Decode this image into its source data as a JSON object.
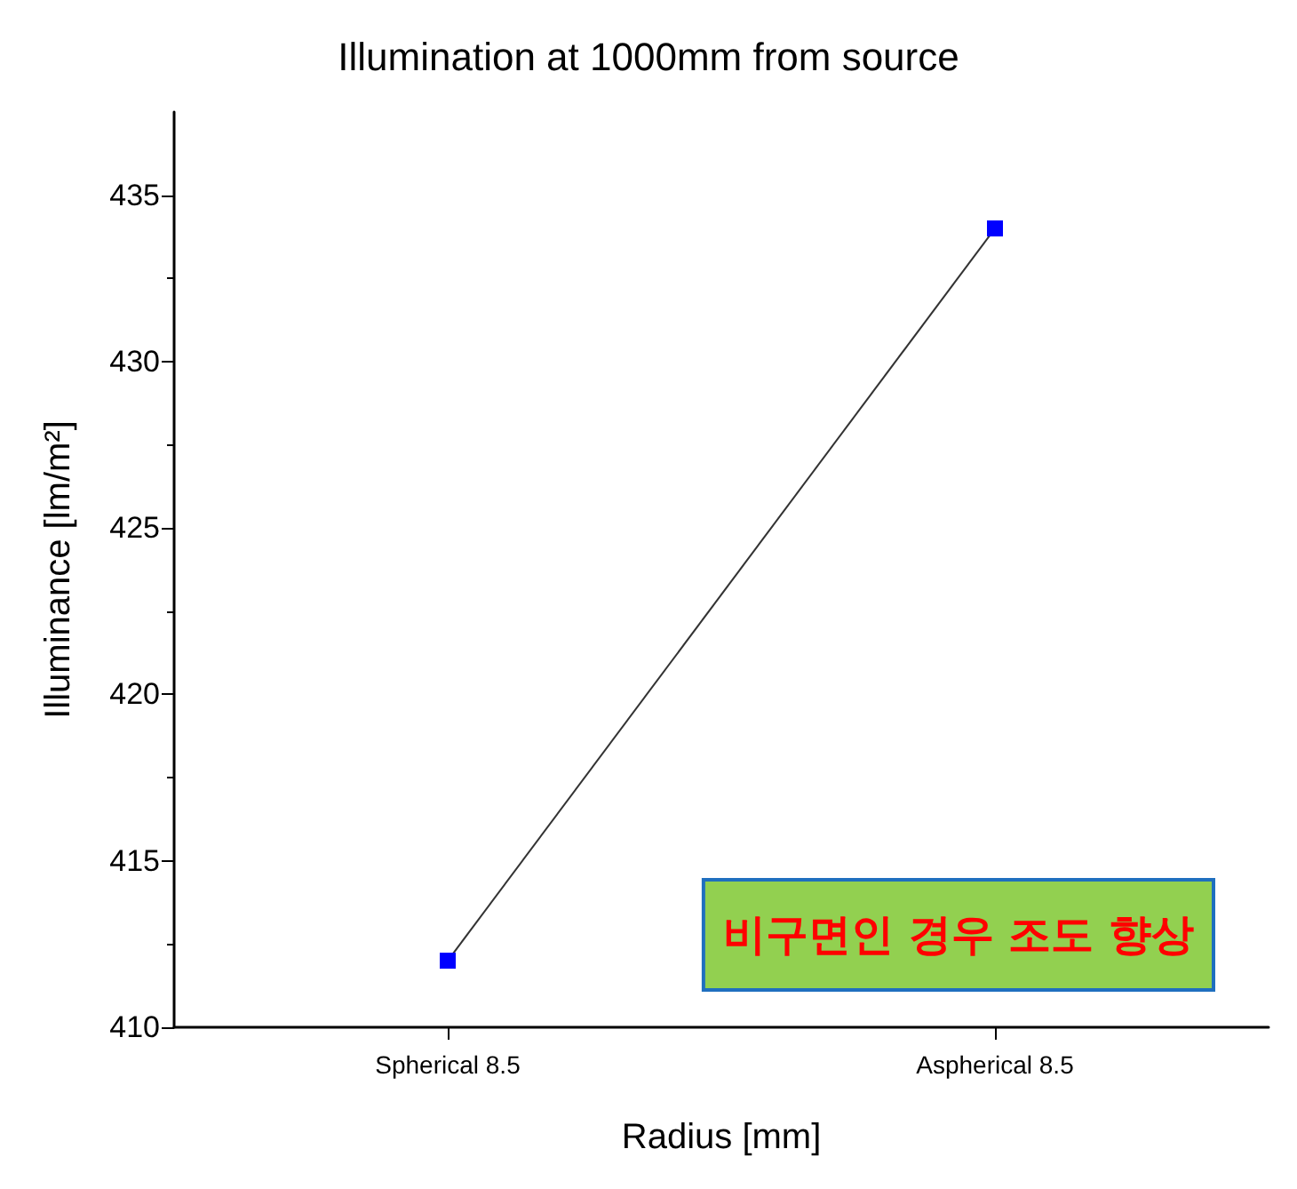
{
  "chart_data": {
    "type": "line",
    "title": "Illumination at 1000mm from source",
    "xlabel": "Radius [mm]",
    "ylabel": "Illuminance [lm/m²]",
    "categories": [
      "Spherical 8.5",
      "Aspherical 8.5"
    ],
    "series": [
      {
        "color": "#0000ff",
        "values": [
          412,
          434
        ]
      }
    ],
    "ylim": [
      410,
      437.5
    ],
    "yticks": [
      410,
      415,
      420,
      425,
      430,
      435
    ],
    "annotations": [
      "비구면인 경우 조도 향상"
    ],
    "marker": "square",
    "line_style": "solid",
    "grid": false
  }
}
